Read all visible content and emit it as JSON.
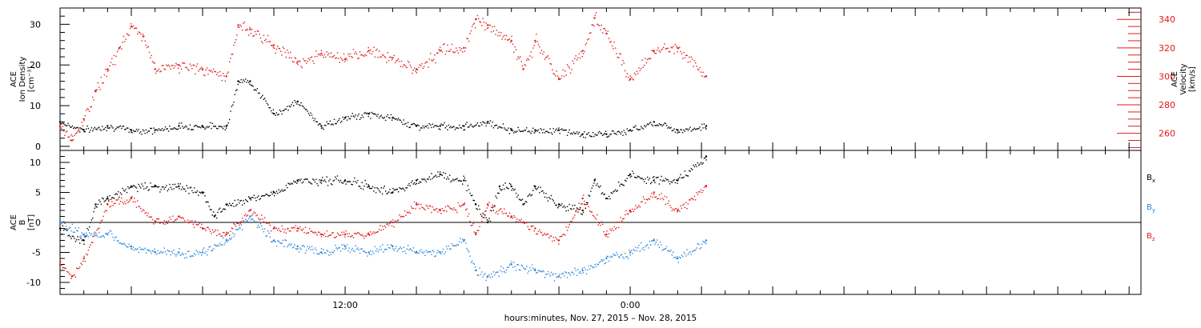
{
  "chart_data": [
    {
      "type": "scatter",
      "panel": "top",
      "ylabel": [
        "ACE",
        "Ion Density",
        "[cm⁻³]"
      ],
      "ylabel_right": [
        "ACE",
        "Velocity",
        "[km/s]"
      ],
      "ylim": [
        -1,
        34
      ],
      "ylim_right": [
        248,
        348
      ],
      "yticks": [
        0,
        10,
        20,
        30
      ],
      "yticks_right": [
        260,
        280,
        300,
        320,
        340
      ],
      "xlim": [
        0,
        45.5
      ],
      "xticks": [
        {
          "x": 12,
          "label": "12:00"
        },
        {
          "x": 24,
          "label": "0:00"
        }
      ],
      "series": [
        {
          "axis": "left",
          "color": "#000000",
          "x": [
            0,
            1,
            2,
            3,
            4,
            5,
            6,
            7,
            7.5,
            8,
            9,
            10,
            11,
            12,
            13,
            14,
            15,
            16,
            17,
            18,
            19,
            20,
            21,
            22,
            23,
            24,
            25,
            26,
            27.2
          ],
          "y": [
            6,
            4,
            5,
            4,
            4,
            5,
            5,
            5,
            16,
            16,
            8,
            11,
            5,
            7,
            8,
            7,
            5,
            5,
            5,
            6,
            4,
            4,
            4,
            3,
            3,
            4,
            6,
            4,
            5
          ]
        },
        {
          "axis": "right",
          "color": "#e11a1a",
          "x": [
            0,
            0.5,
            1,
            1.5,
            2,
            2.5,
            3,
            3.5,
            4,
            5,
            6,
            7,
            7.5,
            8,
            9,
            10,
            11,
            12,
            13,
            14,
            15,
            16,
            17,
            17.5,
            18,
            19,
            19.5,
            20,
            21,
            22,
            22.5,
            23,
            24,
            25,
            26,
            27.2
          ],
          "y": [
            265,
            255,
            270,
            290,
            305,
            320,
            335,
            328,
            305,
            308,
            305,
            300,
            336,
            333,
            322,
            310,
            316,
            312,
            318,
            313,
            305,
            318,
            320,
            340,
            336,
            325,
            305,
            325,
            298,
            318,
            341,
            330,
            298,
            318,
            320,
            300
          ]
        }
      ]
    },
    {
      "type": "scatter",
      "panel": "bottom",
      "ylabel": [
        "ACE",
        "B",
        "[nT]"
      ],
      "ylim": [
        -12,
        12
      ],
      "yticks": [
        -10,
        -5,
        0,
        5,
        10
      ],
      "zero_line": 0,
      "xlim": [
        0,
        45.5
      ],
      "xticks": [
        {
          "x": 12,
          "label": "12:00"
        },
        {
          "x": 24,
          "label": "0:00"
        }
      ],
      "series": [
        {
          "name": "Bx",
          "color": "#000000",
          "x": [
            0,
            1,
            1.5,
            2,
            3,
            4,
            5,
            6,
            6.5,
            7,
            8,
            9,
            10,
            11,
            12,
            13,
            14,
            15,
            16,
            17,
            17.5,
            18,
            18.5,
            19,
            19.5,
            20,
            21,
            22,
            22.5,
            23,
            24,
            25,
            26,
            27.2
          ],
          "y": [
            -1,
            -3,
            3,
            4,
            6,
            6,
            6,
            5,
            1,
            3,
            4,
            5,
            7,
            7,
            7,
            6,
            5,
            7,
            8,
            7,
            3,
            0,
            6,
            6,
            3,
            6,
            3,
            2,
            7,
            4,
            8,
            7,
            7,
            11
          ]
        },
        {
          "name": "By",
          "color": "#2a86d8",
          "x": [
            0,
            1,
            2,
            3,
            4,
            5,
            6,
            7,
            8,
            9,
            10,
            11,
            12,
            13,
            14,
            15,
            16,
            17,
            17.5,
            18,
            19,
            20,
            21,
            22,
            23,
            24,
            25,
            26,
            27.2
          ],
          "y": [
            0,
            -2,
            -2,
            -4,
            -5,
            -5,
            -5,
            -3,
            1,
            -3,
            -4,
            -5,
            -4,
            -5,
            -4,
            -5,
            -5,
            -3,
            -8,
            -9,
            -7,
            -8,
            -9,
            -8,
            -6,
            -5,
            -3,
            -6,
            -3
          ]
        },
        {
          "name": "Bz",
          "color": "#e11a1a",
          "x": [
            0,
            0.5,
            1,
            2,
            3,
            4,
            5,
            6,
            7,
            8,
            9,
            10,
            11,
            12,
            13,
            14,
            15,
            16,
            17,
            17.5,
            18,
            19,
            20,
            21,
            22,
            23,
            24,
            25,
            26,
            27.2
          ],
          "y": [
            -7,
            -9,
            -6,
            3,
            4,
            0,
            1,
            -1,
            -2,
            2,
            -1,
            -1,
            -2,
            -2,
            -2,
            0,
            3,
            2,
            3,
            -2,
            3,
            1,
            -1,
            -3,
            4,
            -2,
            2,
            5,
            2,
            6
          ]
        }
      ],
      "legend": [
        {
          "label": "B",
          "sub": "x",
          "color": "#000000"
        },
        {
          "label": "B",
          "sub": "y",
          "color": "#2a86d8"
        },
        {
          "label": "B",
          "sub": "z",
          "color": "#e11a1a"
        }
      ]
    }
  ],
  "xlabel": "hours:minutes, Nov. 27, 2015 – Nov. 28, 2015"
}
